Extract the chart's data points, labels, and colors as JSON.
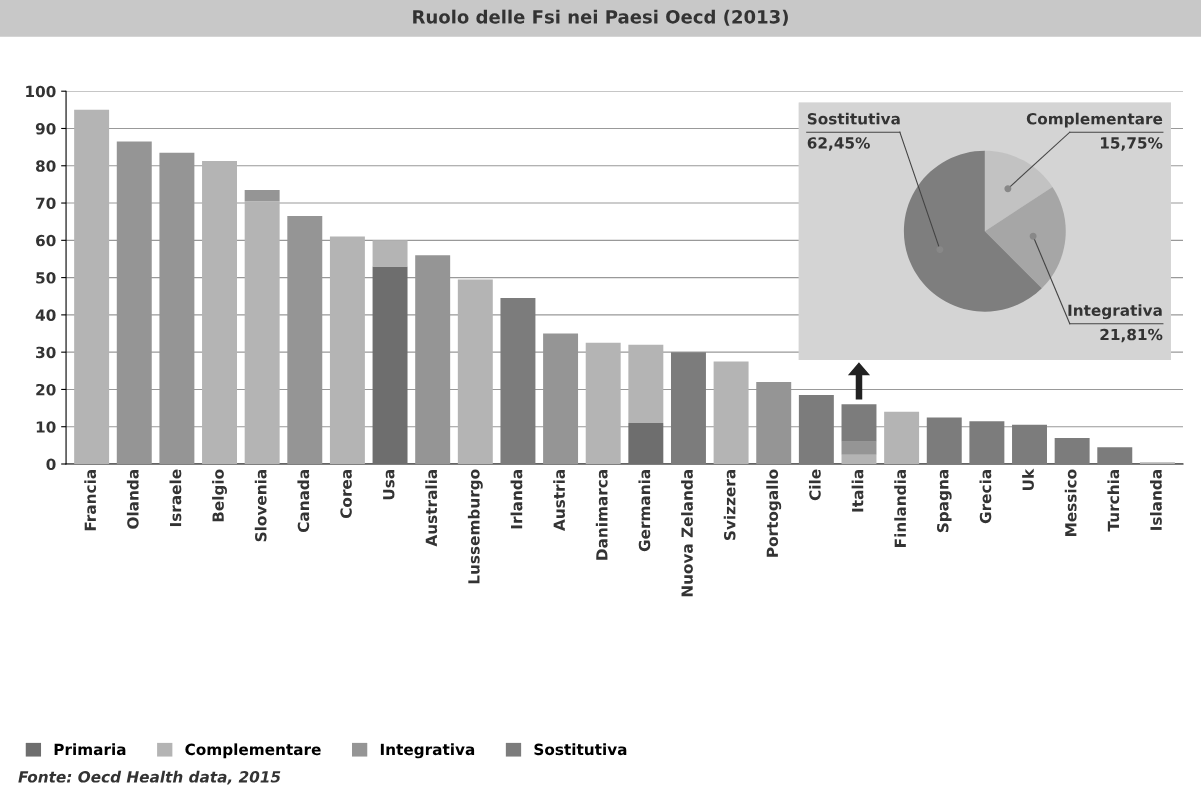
{
  "chart_data": [
    {
      "type": "bar",
      "title": "Ruolo delle Fsi nei Paesi Oecd (2013)",
      "stacked": true,
      "categories": [
        "Francia",
        "Olanda",
        "Israele",
        "Belgio",
        "Slovenia",
        "Canada",
        "Corea",
        "Usa",
        "Australia",
        "Lussemburgo",
        "Irlanda",
        "Austria",
        "Danimarca",
        "Germania",
        "Nuova Zelanda",
        "Svizzera",
        "Portogallo",
        "Cile",
        "Italia",
        "Finlandia",
        "Spagna",
        "Grecia",
        "Uk",
        "Messico",
        "Turchia",
        "Islanda"
      ],
      "series": [
        {
          "name": "Primaria",
          "color": "#6e6e6e",
          "values": [
            null,
            null,
            null,
            null,
            null,
            null,
            null,
            53,
            null,
            null,
            null,
            null,
            null,
            11,
            null,
            null,
            null,
            null,
            null,
            null,
            null,
            null,
            null,
            null,
            null,
            null
          ]
        },
        {
          "name": "Complementare",
          "color": "#b4b4b4",
          "values": [
            95,
            null,
            null,
            81.3,
            70.5,
            null,
            61,
            7,
            null,
            49.5,
            null,
            null,
            32.5,
            21,
            null,
            27.5,
            null,
            null,
            2.5,
            14,
            null,
            null,
            null,
            null,
            null,
            0.5
          ]
        },
        {
          "name": "Integrativa",
          "color": "#959595",
          "values": [
            null,
            86.5,
            83.5,
            null,
            3,
            66.5,
            null,
            null,
            56,
            null,
            null,
            35,
            null,
            null,
            null,
            null,
            22,
            null,
            3.5,
            null,
            null,
            null,
            null,
            null,
            null,
            null
          ]
        },
        {
          "name": "Sostitutiva",
          "color": "#7c7c7c",
          "values": [
            null,
            null,
            null,
            null,
            null,
            null,
            null,
            null,
            null,
            null,
            44.5,
            null,
            null,
            null,
            30,
            null,
            null,
            18.5,
            10,
            null,
            12.5,
            11.5,
            10.5,
            7,
            4.5,
            null
          ]
        }
      ],
      "ylim": [
        0,
        100
      ],
      "yticks": [
        0,
        10,
        20,
        30,
        40,
        50,
        60,
        70,
        80,
        90,
        100
      ],
      "grid": "y",
      "legend": "bottom",
      "annotations": [
        "Fonte: Oecd Health data, 2015"
      ]
    },
    {
      "type": "pie",
      "categories": [
        "Complementare",
        "Integrativa",
        "Sostitutiva"
      ],
      "values": [
        15.75,
        21.81,
        62.45
      ],
      "colors": [
        "#c2c2c2",
        "#a6a6a6",
        "#7e7e7e"
      ],
      "value_labels": [
        "15,75%",
        "21,81%",
        "62,45%"
      ]
    }
  ]
}
